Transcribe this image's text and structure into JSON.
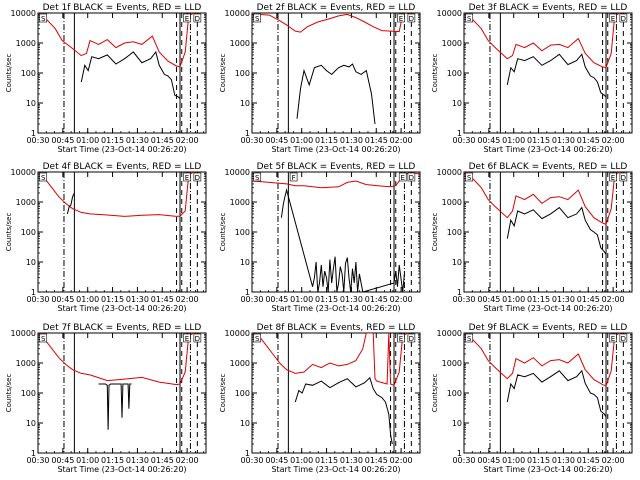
{
  "colors": {
    "events": "#000000",
    "lld": "#dd0000",
    "axes": "#000000",
    "background": "#ffffff"
  },
  "chart_data": [
    {
      "type": "line",
      "title": "Det 1f BLACK = Events, RED = LLD",
      "xlabel": "Start Time (23-Oct-14 00:26:20)",
      "ylabel": "Counts/sec",
      "xlim": [
        0,
        97
      ],
      "ylim": [
        1,
        10000
      ],
      "yscale": "log",
      "xticks": [
        "00:30",
        "00:45",
        "01:00",
        "01:15",
        "01:30",
        "01:45",
        "02:00"
      ],
      "yticks": [
        "1",
        "10",
        "100",
        "1000",
        "10000"
      ],
      "markers": [
        "S",
        "E",
        "D"
      ],
      "series": [
        {
          "name": "LLD",
          "x": [
            0,
            4,
            10,
            14,
            18,
            25,
            28,
            30,
            35,
            40,
            45,
            50,
            55,
            60,
            66,
            70,
            75,
            80,
            82,
            85,
            87,
            90,
            91
          ],
          "y": [
            10000,
            7000,
            3000,
            1200,
            800,
            380,
            450,
            1200,
            900,
            1300,
            700,
            1000,
            1100,
            900,
            1700,
            500,
            250,
            170,
            160,
            500,
            8000,
            12000,
            9000
          ]
        },
        {
          "name": "Events",
          "x": [
            25,
            27,
            29,
            31,
            35,
            40,
            45,
            50,
            55,
            60,
            65,
            68,
            70,
            73,
            75,
            77,
            79,
            81,
            82
          ],
          "y": [
            50,
            180,
            120,
            350,
            300,
            400,
            200,
            300,
            500,
            220,
            300,
            500,
            180,
            90,
            80,
            60,
            18,
            16,
            14
          ]
        }
      ]
    },
    {
      "type": "line",
      "title": "Det 2f BLACK = Events, RED = LLD",
      "xlabel": "Start Time (23-Oct-14 00:26:20)",
      "ylabel": "Counts/sec",
      "xlim": [
        0,
        97
      ],
      "ylim": [
        1,
        10000
      ],
      "yscale": "log",
      "xticks": [
        "00:30",
        "00:45",
        "01:00",
        "01:15",
        "01:30",
        "01:45",
        "02:00"
      ],
      "yticks": [
        "1",
        "10",
        "100",
        "1000",
        "10000"
      ],
      "markers": [
        "S",
        "E",
        "D"
      ],
      "series": [
        {
          "name": "LLD",
          "x": [
            0,
            4,
            10,
            15,
            20,
            25,
            28,
            32,
            38,
            45,
            50,
            55,
            60,
            65,
            70,
            75,
            80,
            85,
            87,
            89,
            91
          ],
          "y": [
            8000,
            9000,
            8500,
            6000,
            4000,
            2500,
            2300,
            3500,
            5000,
            6500,
            8000,
            9000,
            7000,
            5000,
            3500,
            2600,
            2500,
            2400,
            9000,
            12000,
            9000
          ]
        },
        {
          "name": "Events",
          "x": [
            26,
            28,
            30,
            33,
            36,
            40,
            43,
            46,
            50,
            53,
            56,
            58,
            60,
            63,
            66,
            69,
            71
          ],
          "y": [
            3,
            30,
            120,
            40,
            150,
            180,
            120,
            90,
            150,
            180,
            160,
            200,
            110,
            90,
            120,
            20,
            2
          ]
        }
      ]
    },
    {
      "type": "line",
      "title": "Det 3f BLACK = Events, RED = LLD",
      "xlabel": "Start Time (23-Oct-14 00:26:20)",
      "ylabel": "Counts/sec",
      "xlim": [
        0,
        97
      ],
      "ylim": [
        1,
        10000
      ],
      "yscale": "log",
      "xticks": [
        "00:30",
        "00:45",
        "01:00",
        "01:15",
        "01:30",
        "01:45",
        "02:00"
      ],
      "yticks": [
        "1",
        "10",
        "100",
        "1000",
        "10000"
      ],
      "markers": [
        "S",
        "E",
        "D"
      ],
      "series": [
        {
          "name": "LLD",
          "x": [
            0,
            4,
            10,
            14,
            18,
            25,
            28,
            30,
            35,
            40,
            45,
            50,
            55,
            60,
            66,
            70,
            75,
            80,
            82,
            85,
            87,
            90,
            91
          ],
          "y": [
            10000,
            7000,
            3000,
            1200,
            700,
            300,
            380,
            900,
            700,
            1000,
            550,
            850,
            900,
            700,
            1400,
            450,
            220,
            160,
            150,
            450,
            8000,
            12000,
            9000
          ]
        },
        {
          "name": "Events",
          "x": [
            25,
            27,
            29,
            31,
            35,
            40,
            45,
            50,
            55,
            60,
            65,
            68,
            70,
            73,
            75,
            77,
            79,
            81,
            82
          ],
          "y": [
            40,
            150,
            110,
            300,
            260,
            350,
            180,
            260,
            420,
            190,
            260,
            420,
            160,
            80,
            70,
            50,
            22,
            18,
            16
          ]
        }
      ]
    },
    {
      "type": "line",
      "title": "Det 4f BLACK = Events, RED = LLD",
      "xlabel": "Start Time (23-Oct-14 00:26:20)",
      "ylabel": "Counts/sec",
      "xlim": [
        0,
        97
      ],
      "ylim": [
        1,
        10000
      ],
      "yscale": "log",
      "xticks": [
        "00:30",
        "00:45",
        "01:00",
        "01:15",
        "01:30",
        "01:45",
        "02:00"
      ],
      "yticks": [
        "1",
        "10",
        "100",
        "1000",
        "10000"
      ],
      "markers": [
        "S",
        "E",
        "D"
      ],
      "series": [
        {
          "name": "LLD",
          "x": [
            0,
            4,
            8,
            12,
            16,
            20,
            25,
            30,
            40,
            50,
            60,
            70,
            80,
            82,
            85,
            87,
            90,
            91
          ],
          "y": [
            10000,
            6000,
            3000,
            1500,
            900,
            600,
            450,
            400,
            370,
            330,
            360,
            380,
            330,
            340,
            500,
            8000,
            12000,
            9000
          ]
        },
        {
          "name": "Events",
          "x": [
            17,
            18,
            19,
            20,
            21
          ],
          "y": [
            400,
            700,
            800,
            1500,
            2000
          ]
        }
      ]
    },
    {
      "type": "line",
      "title": "Det 5f BLACK = Events, RED = LLD",
      "xlabel": "Start Time (23-Oct-14 00:26:20)",
      "ylabel": "Counts/sec",
      "xlim": [
        0,
        97
      ],
      "ylim": [
        1,
        10000
      ],
      "yscale": "log",
      "xticks": [
        "00:30",
        "00:45",
        "01:00",
        "01:15",
        "01:30",
        "01:45",
        "02:00"
      ],
      "yticks": [
        "1",
        "10",
        "100",
        "1000",
        "10000"
      ],
      "markers": [
        "S",
        "F",
        "E",
        "D"
      ],
      "series": [
        {
          "name": "LLD",
          "x": [
            0,
            10,
            20,
            25,
            30,
            40,
            50,
            55,
            60,
            66,
            70,
            75,
            80,
            83,
            85,
            87,
            90,
            93,
            97
          ],
          "y": [
            5000,
            4500,
            4000,
            3500,
            3500,
            3000,
            3200,
            4500,
            5000,
            3800,
            3600,
            3400,
            3200,
            3500,
            5000,
            8000,
            9000,
            9000,
            9000
          ]
        },
        {
          "name": "Events",
          "x": [
            17,
            18,
            19,
            20,
            35,
            36,
            37,
            38,
            39,
            40,
            41,
            42,
            43,
            44,
            45,
            46,
            47,
            48,
            49,
            50,
            51,
            52,
            53,
            54,
            55,
            56,
            57,
            58,
            59,
            60,
            61,
            62,
            63,
            64,
            82,
            83,
            84,
            85,
            86,
            87,
            88
          ],
          "y": [
            300,
            800,
            1500,
            2500,
            1.5,
            3,
            10,
            1,
            2,
            8,
            1.5,
            5,
            3,
            1,
            12,
            2,
            6,
            15,
            1,
            2,
            7,
            4,
            1,
            9,
            14,
            3,
            1,
            6,
            2,
            10,
            1,
            4,
            2,
            1,
            2,
            5,
            1.5,
            8,
            3,
            1,
            4
          ]
        }
      ]
    },
    {
      "type": "line",
      "title": "Det 6f BLACK = Events, RED = LLD",
      "xlabel": "Start Time (23-Oct-14 00:26:20)",
      "ylabel": "Counts/sec",
      "xlim": [
        0,
        97
      ],
      "ylim": [
        1,
        10000
      ],
      "yscale": "log",
      "xticks": [
        "00:30",
        "00:45",
        "01:00",
        "01:15",
        "01:30",
        "01:45",
        "02:00"
      ],
      "yticks": [
        "1",
        "10",
        "100",
        "1000",
        "10000"
      ],
      "markers": [
        "S",
        "E",
        "D"
      ],
      "series": [
        {
          "name": "LLD",
          "x": [
            0,
            4,
            10,
            14,
            18,
            25,
            28,
            30,
            35,
            40,
            45,
            50,
            55,
            60,
            66,
            70,
            75,
            80,
            82,
            85,
            87,
            90,
            91
          ],
          "y": [
            10000,
            7000,
            3000,
            1200,
            700,
            300,
            500,
            1600,
            1200,
            1800,
            900,
            1400,
            1500,
            1200,
            2500,
            700,
            300,
            200,
            180,
            600,
            8000,
            12000,
            9000
          ]
        },
        {
          "name": "Events",
          "x": [
            25,
            27,
            29,
            31,
            35,
            40,
            45,
            50,
            55,
            60,
            65,
            68,
            70,
            73,
            75,
            77,
            79,
            81,
            82
          ],
          "y": [
            60,
            250,
            160,
            500,
            400,
            550,
            280,
            400,
            650,
            300,
            400,
            650,
            250,
            120,
            100,
            80,
            30,
            22,
            18
          ]
        }
      ]
    },
    {
      "type": "line",
      "title": "Det 7f BLACK = Events, RED = LLD",
      "xlabel": "Start Time (23-Oct-14 00:26:20)",
      "ylabel": "Counts/sec",
      "xlim": [
        0,
        97
      ],
      "ylim": [
        1,
        10000
      ],
      "yscale": "log",
      "xticks": [
        "00:30",
        "00:45",
        "01:00",
        "01:15",
        "01:30",
        "01:45",
        "02:00"
      ],
      "yticks": [
        "1",
        "10",
        "100",
        "1000",
        "10000"
      ],
      "markers": [
        "S",
        "E",
        "D"
      ],
      "series": [
        {
          "name": "LLD",
          "x": [
            0,
            4,
            8,
            12,
            16,
            20,
            25,
            30,
            40,
            50,
            60,
            70,
            80,
            82,
            85,
            87,
            90,
            91
          ],
          "y": [
            10000,
            6000,
            3000,
            1500,
            900,
            600,
            450,
            400,
            260,
            290,
            330,
            230,
            190,
            200,
            500,
            8000,
            12000,
            9000
          ]
        },
        {
          "name": "Events",
          "x": [
            35,
            39,
            40,
            40.5,
            41,
            42,
            48,
            48.5,
            49,
            52,
            52.5,
            53,
            54
          ],
          "y": [
            200,
            200,
            180,
            6,
            180,
            200,
            200,
            15,
            200,
            200,
            30,
            200,
            200
          ]
        }
      ]
    },
    {
      "type": "line",
      "title": "Det 8f BLACK = Events, RED = LLD",
      "xlabel": "Start Time (23-Oct-14 00:26:20)",
      "ylabel": "Counts/sec",
      "xlim": [
        0,
        97
      ],
      "ylim": [
        1,
        10000
      ],
      "yscale": "log",
      "xticks": [
        "00:30",
        "00:45",
        "01:00",
        "01:15",
        "01:30",
        "01:45",
        "02:00"
      ],
      "yticks": [
        "1",
        "10",
        "100",
        "1000",
        "10000"
      ],
      "markers": [
        "S",
        "E",
        "D"
      ],
      "series": [
        {
          "name": "LLD",
          "x": [
            0,
            4,
            8,
            12,
            16,
            20,
            25,
            30,
            35,
            40,
            45,
            50,
            55,
            60,
            64,
            66,
            70,
            71,
            72,
            78,
            79,
            80,
            82,
            85,
            87,
            90,
            91
          ],
          "y": [
            10000,
            8000,
            4000,
            2000,
            1000,
            600,
            450,
            500,
            900,
            700,
            1000,
            800,
            900,
            1200,
            3000,
            15000,
            15000,
            300,
            250,
            200,
            15000,
            200,
            180,
            500,
            8000,
            12000,
            9000
          ]
        },
        {
          "name": "Events",
          "x": [
            25,
            27,
            29,
            31,
            35,
            40,
            45,
            50,
            55,
            60,
            65,
            68,
            70,
            72,
            75,
            77,
            79,
            80,
            81
          ],
          "y": [
            50,
            120,
            100,
            200,
            180,
            250,
            150,
            220,
            300,
            160,
            220,
            320,
            140,
            90,
            70,
            50,
            20,
            4,
            2
          ]
        }
      ]
    },
    {
      "type": "line",
      "title": "Det 9f BLACK = Events, RED = LLD",
      "xlabel": "Start Time (23-Oct-14 00:26:20)",
      "ylabel": "Counts/sec",
      "xlim": [
        0,
        97
      ],
      "ylim": [
        1,
        10000
      ],
      "yscale": "log",
      "xticks": [
        "00:30",
        "00:45",
        "01:00",
        "01:15",
        "01:30",
        "01:45",
        "02:00"
      ],
      "yticks": [
        "1",
        "10",
        "100",
        "1000",
        "10000"
      ],
      "markers": [
        "S",
        "E",
        "D"
      ],
      "series": [
        {
          "name": "LLD",
          "x": [
            0,
            4,
            10,
            14,
            18,
            25,
            28,
            30,
            35,
            40,
            45,
            50,
            55,
            60,
            66,
            70,
            75,
            80,
            82,
            85,
            87,
            90,
            91
          ],
          "y": [
            10000,
            7000,
            3000,
            1200,
            700,
            300,
            450,
            1400,
            1000,
            1500,
            800,
            1200,
            1300,
            1000,
            2000,
            600,
            280,
            190,
            170,
            550,
            8000,
            12000,
            9000
          ]
        },
        {
          "name": "Events",
          "x": [
            25,
            27,
            29,
            31,
            35,
            40,
            45,
            50,
            55,
            60,
            65,
            68,
            70,
            73,
            75,
            77,
            79,
            81,
            82
          ],
          "y": [
            50,
            200,
            140,
            400,
            350,
            450,
            230,
            350,
            550,
            260,
            350,
            550,
            210,
            100,
            90,
            70,
            25,
            20,
            16
          ]
        }
      ]
    }
  ]
}
